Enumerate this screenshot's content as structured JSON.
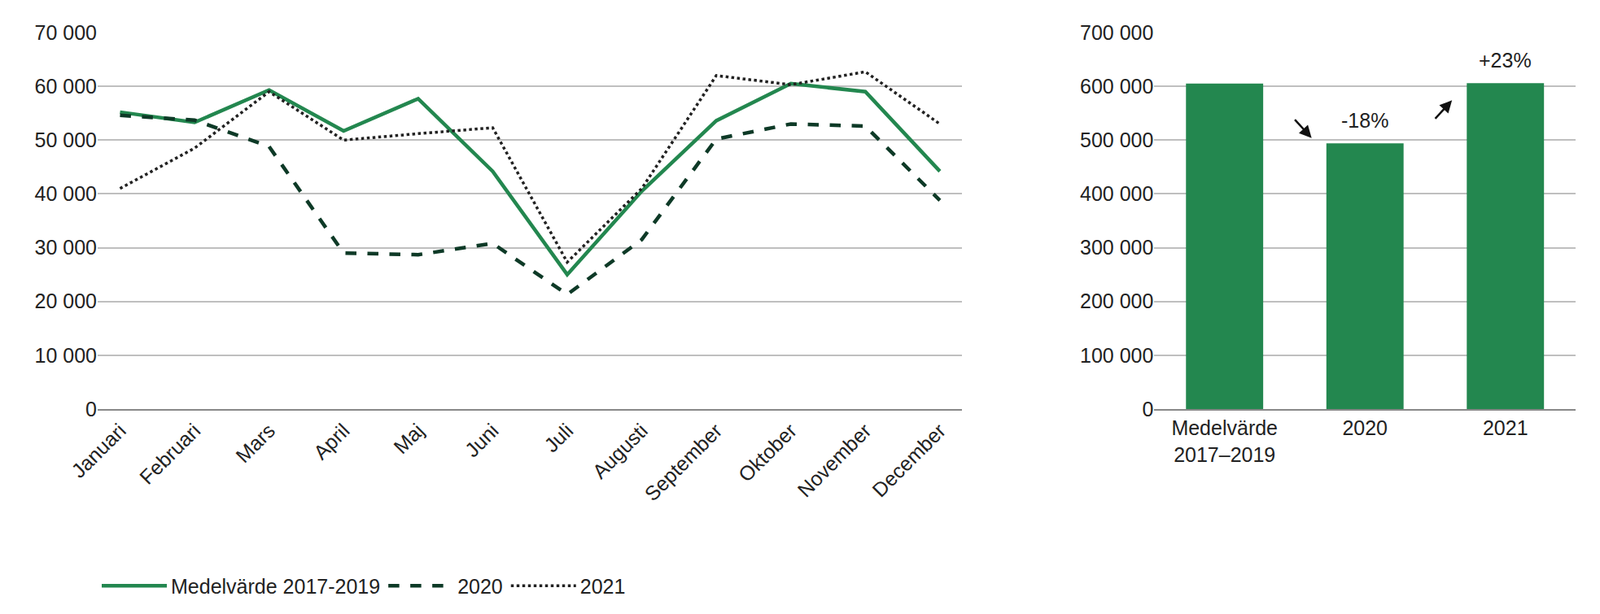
{
  "chart_data": [
    {
      "type": "line",
      "categories": [
        "Januari",
        "Februari",
        "Mars",
        "April",
        "Maj",
        "Juni",
        "Juli",
        "Augusti",
        "September",
        "Oktober",
        "November",
        "December"
      ],
      "series": [
        {
          "name": "Medelvärde 2017-2019",
          "color": "#23874f",
          "line_style": "solid",
          "values": [
            55200,
            53300,
            59300,
            51700,
            57700,
            44200,
            25000,
            40500,
            53600,
            60500,
            59000,
            44200
          ]
        },
        {
          "name": "2020",
          "color": "#0e3a27",
          "line_style": "dash",
          "values": [
            54600,
            53700,
            48800,
            29000,
            28700,
            30800,
            21300,
            31500,
            50200,
            53000,
            52600,
            38800
          ]
        },
        {
          "name": "2021",
          "color": "#222222",
          "line_style": "dot",
          "values": [
            41000,
            48500,
            59000,
            50000,
            51200,
            52300,
            27300,
            41000,
            62000,
            60300,
            62700,
            53000
          ]
        }
      ],
      "ylim": [
        0,
        70000
      ],
      "yticks": [
        0,
        {
          "value": 10000,
          "label": "10 000"
        },
        {
          "value": 20000,
          "label": "20 000"
        },
        {
          "value": 30000,
          "label": "30 000"
        },
        {
          "value": 40000,
          "label": "40 000"
        },
        {
          "value": 50000,
          "label": "50 000"
        },
        {
          "value": 60000,
          "label": "60 000"
        },
        {
          "value": 70000,
          "label": "70 000"
        }
      ],
      "grid": true,
      "legend": "bottom"
    },
    {
      "type": "bar",
      "categories": [
        "Medelvärde 2017–2019",
        "2020",
        "2021"
      ],
      "values": [
        605000,
        494000,
        606000
      ],
      "color": "#23874f",
      "ylim": [
        0,
        700000
      ],
      "yticks": [
        0,
        {
          "value": 100000,
          "label": "100 000"
        },
        {
          "value": 200000,
          "label": "200 000"
        },
        {
          "value": 300000,
          "label": "300 000"
        },
        {
          "value": 400000,
          "label": "400 000"
        },
        {
          "value": 500000,
          "label": "500 000"
        },
        {
          "value": 600000,
          "label": "600 000"
        },
        {
          "value": 700000,
          "label": "700 000"
        }
      ],
      "grid": true,
      "annotations": [
        {
          "text": "-18%",
          "category": "2020"
        },
        {
          "text": "+23%",
          "category": "2021"
        }
      ]
    }
  ]
}
